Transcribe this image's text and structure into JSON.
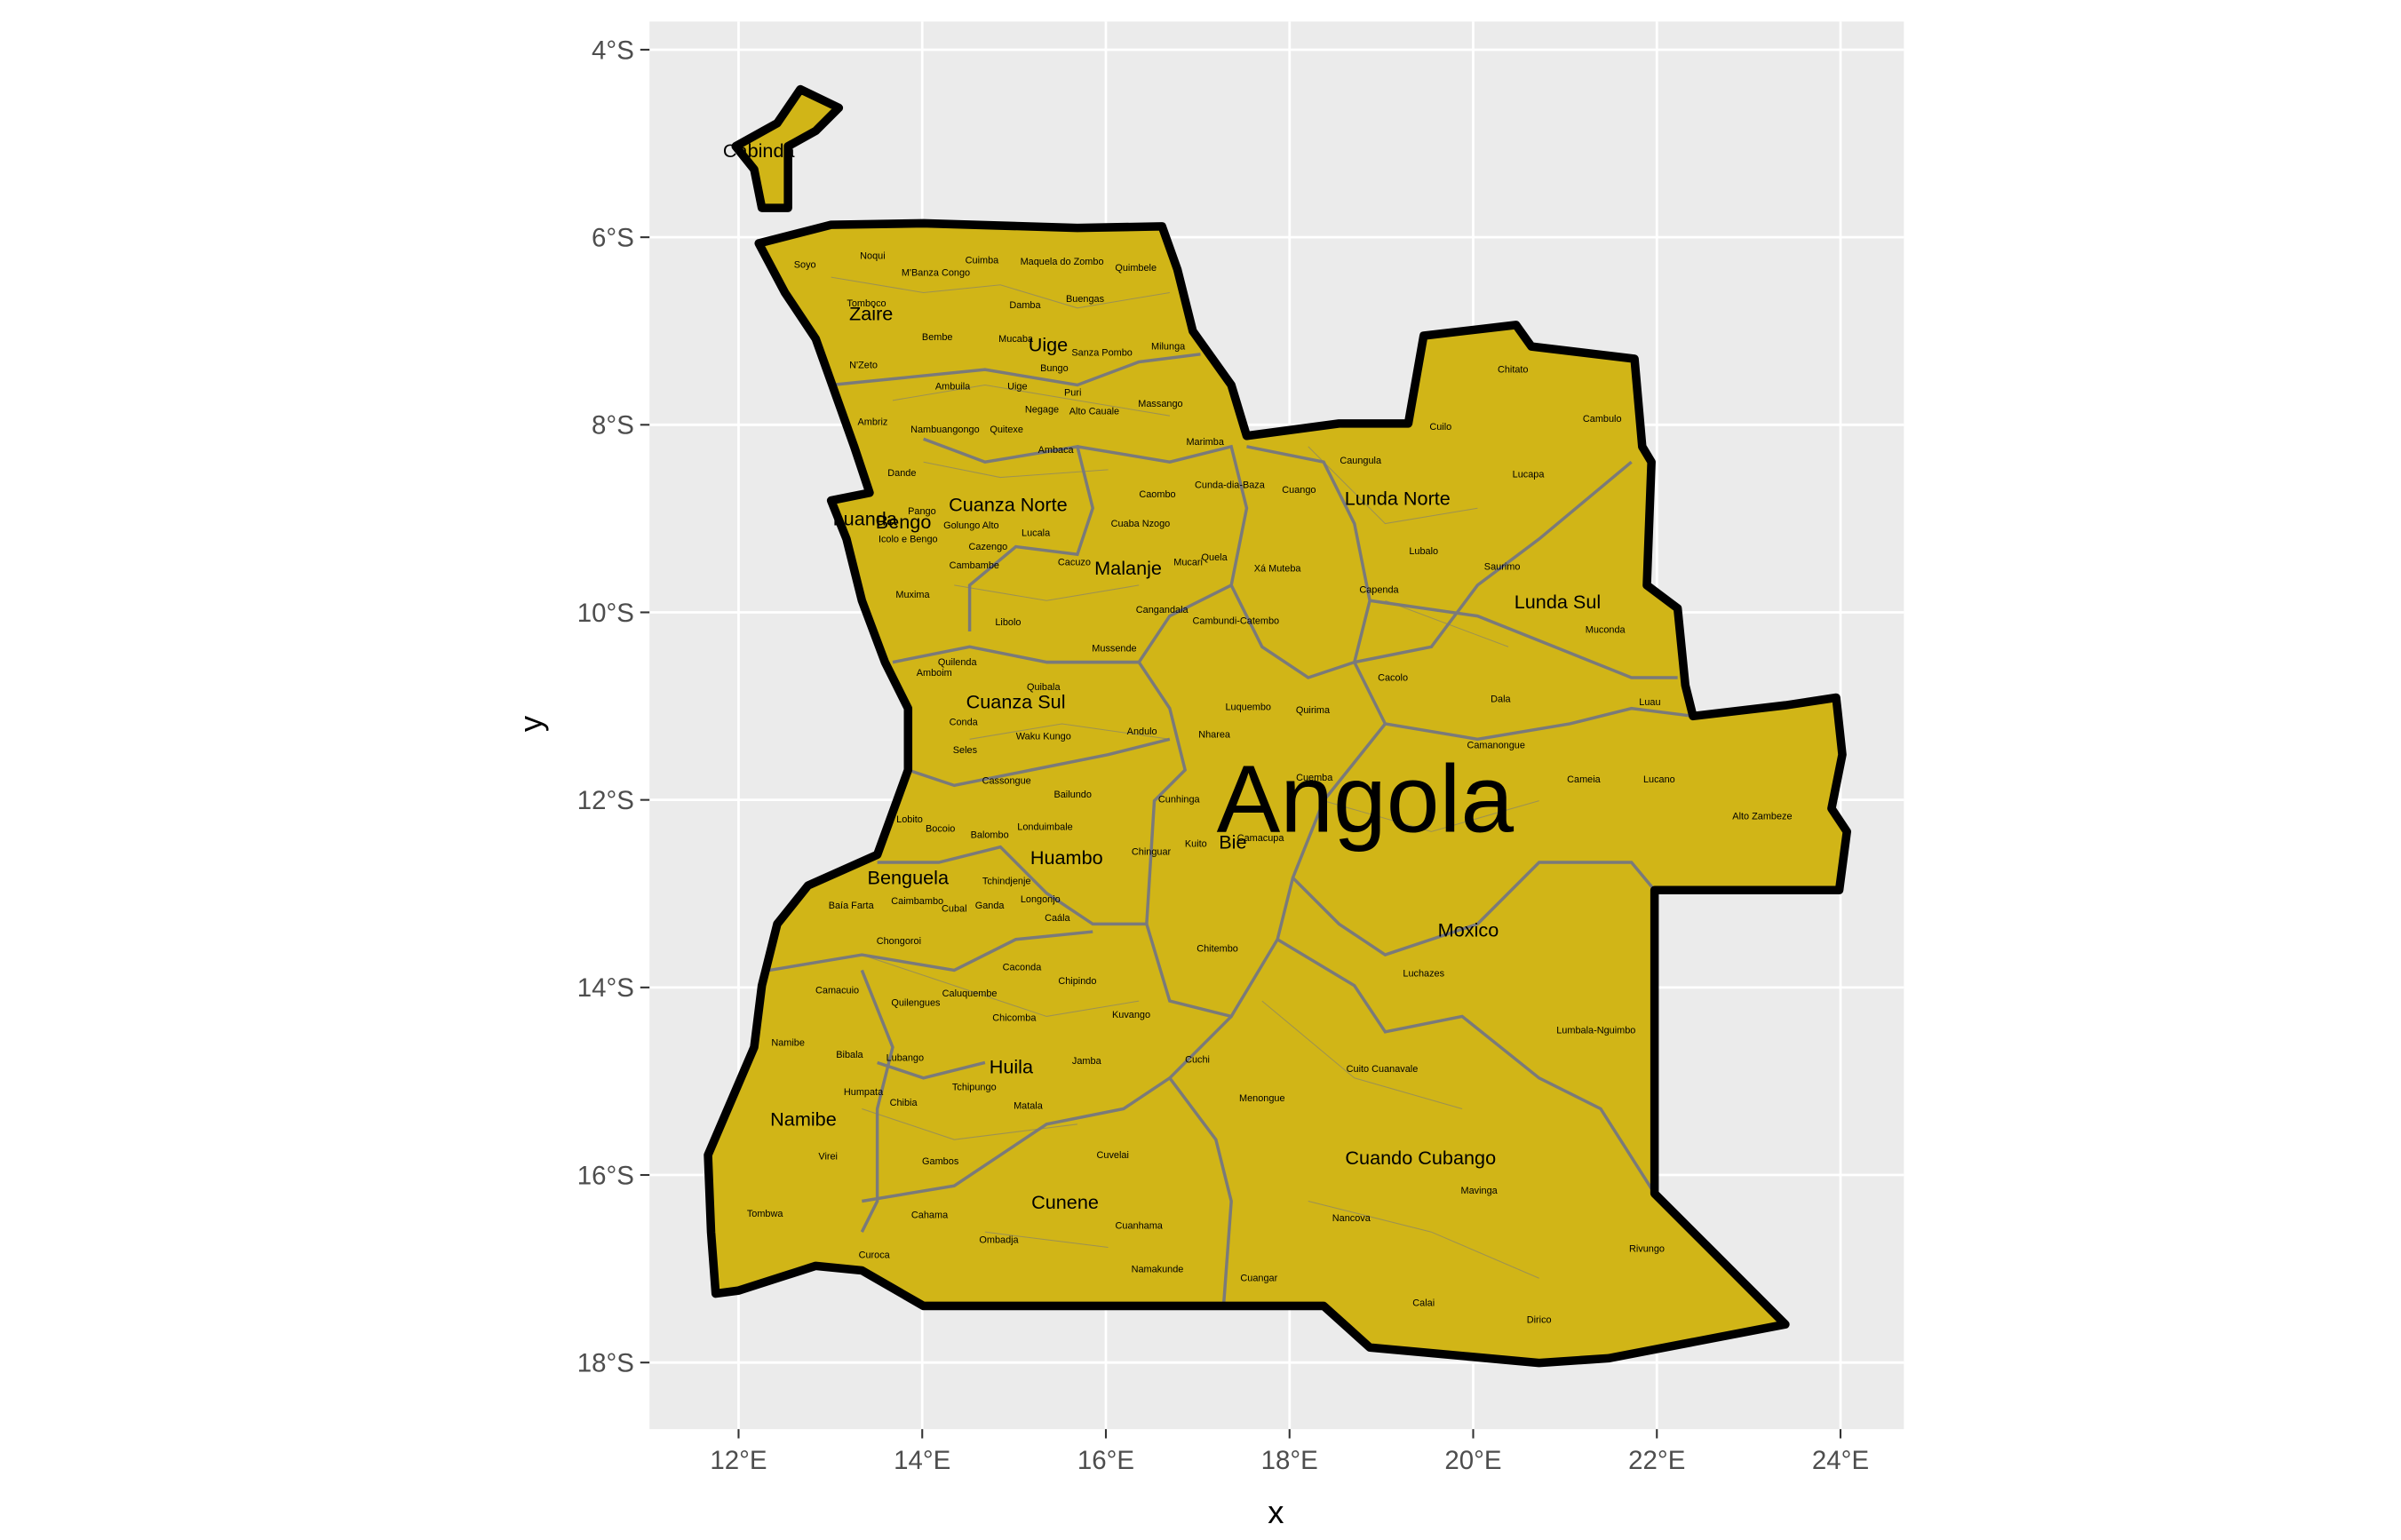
{
  "map": {
    "xlabel": "x",
    "ylabel": "y",
    "xlim": [
      11.03,
      24.69
    ],
    "ylim": [
      -18.71,
      -3.7
    ],
    "xticks": [
      {
        "value": 12,
        "label": "12°E"
      },
      {
        "value": 14,
        "label": "14°E"
      },
      {
        "value": 16,
        "label": "16°E"
      },
      {
        "value": 18,
        "label": "18°E"
      },
      {
        "value": 20,
        "label": "20°E"
      },
      {
        "value": 22,
        "label": "22°E"
      },
      {
        "value": 24,
        "label": "24°E"
      }
    ],
    "yticks": [
      {
        "value": -4,
        "label": "4°S"
      },
      {
        "value": -6,
        "label": "6°S"
      },
      {
        "value": -8,
        "label": "8°S"
      },
      {
        "value": -10,
        "label": "10°S"
      },
      {
        "value": -12,
        "label": "12°S"
      },
      {
        "value": -14,
        "label": "14°S"
      },
      {
        "value": -16,
        "label": "16°S"
      },
      {
        "value": -18,
        "label": "18°S"
      }
    ],
    "country": "Angola",
    "provinces": [
      "Cabinda",
      "Zaire",
      "Uige",
      "Luanda",
      "Bengo",
      "Cuanza Norte",
      "Malanje",
      "Lunda Norte",
      "Lunda Sul",
      "Cuanza Sul",
      "Bie",
      "Huambo",
      "Benguela",
      "Moxico",
      "Huila",
      "Namibe",
      "Cunene",
      "Cuando Cubango"
    ],
    "municipalities": [
      "Soyo",
      "Noqui",
      "Cuimba",
      "Maquela do Zombo",
      "Quimbele",
      "M'Banza Congo",
      "Tomboco",
      "Damba",
      "Buengas",
      "Bembe",
      "Mucaba",
      "Sanza Pombo",
      "Milunga",
      "N'Zeto",
      "Ambuila",
      "Bungo",
      "Uige",
      "Negage",
      "Alto Cauale",
      "Puri",
      "Massango",
      "Chitato",
      "Cambulo",
      "Cuilo",
      "Ambriz",
      "Nambuangongo",
      "Quitexe",
      "Marimba",
      "Caungula",
      "Lucapa",
      "Ambaca",
      "Dande",
      "Cunda-dia-Baza",
      "Cuango",
      "Caombo",
      "Pango",
      "Golungo Alto",
      "Cuaba Nzogo",
      "Lubalo",
      "Icolo e Bengo",
      "Cazengo",
      "Lucala",
      "Cambambe",
      "Cacuzo",
      "Mucari",
      "Quela",
      "Xá Muteba",
      "Saurimo",
      "Capenda",
      "Muxima",
      "Cangandala",
      "Cambundi-Catembo",
      "Libolo",
      "Muconda",
      "Mussende",
      "Quilenda",
      "Cacolo",
      "Amboim",
      "Quibala",
      "Luquembo",
      "Dala",
      "Luau",
      "Quirima",
      "Conda",
      "Andulo",
      "Nharea",
      "Waku Kungo",
      "Seles",
      "Camanongue",
      "Cassongue",
      "Cuemba",
      "Cameia",
      "Lucano",
      "Bailundo",
      "Cunhinga",
      "Alto Zambeze",
      "Lobito",
      "Londuimbale",
      "Bocoio",
      "Balombo",
      "Camacupa",
      "Kuito",
      "Chinguar",
      "Tchindjenje",
      "Caimbambo",
      "Ganda",
      "Cubal",
      "Baía Farta",
      "Longonjo",
      "Caála",
      "Chongoroi",
      "Chitembo",
      "Caconda",
      "Luchazes",
      "Chipindo",
      "Camacuio",
      "Caluquembe",
      "Quilengues",
      "Kuvango",
      "Chicomba",
      "Lumbala-Nguimbo",
      "Namibe",
      "Bibala",
      "Lubango",
      "Cuchi",
      "Jamba",
      "Cuito Cuanavale",
      "Tchipungo",
      "Humpata",
      "Chibia",
      "Matala",
      "Menongue",
      "Cuvelai",
      "Gambos",
      "Virei",
      "Mavinga",
      "Nancova",
      "Tombwa",
      "Cahama",
      "Cuanhama",
      "Ombadja",
      "Rivungo",
      "Namakunde",
      "Curoca",
      "Cuangar",
      "Calai",
      "Dirico"
    ]
  }
}
